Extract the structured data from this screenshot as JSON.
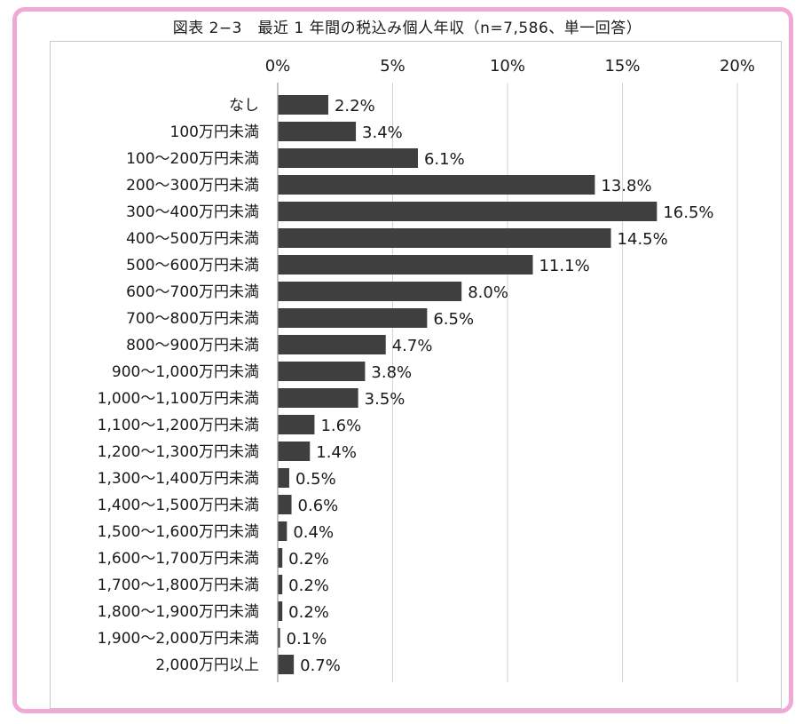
{
  "chart_data": {
    "type": "bar",
    "orientation": "horizontal",
    "title": "図表 2−3　最近 1 年間の税込み個人年収（n=7,586、単一回答）",
    "xlim": [
      0,
      20
    ],
    "xticks": [
      "0%",
      "5%",
      "10%",
      "15%",
      "20%"
    ],
    "grid": true,
    "categories": [
      "なし",
      "100万円未満",
      "100～200万円未満",
      "200～300万円未満",
      "300～400万円未満",
      "400～500万円未満",
      "500～600万円未満",
      "600～700万円未満",
      "700～800万円未満",
      "800～900万円未満",
      "900～1,000万円未満",
      "1,000～1,100万円未満",
      "1,100～1,200万円未満",
      "1,200～1,300万円未満",
      "1,300～1,400万円未満",
      "1,400～1,500万円未満",
      "1,500～1,600万円未満",
      "1,600～1,700万円未満",
      "1,700～1,800万円未満",
      "1,800～1,900万円未満",
      "1,900～2,000万円未満",
      "2,000万円以上"
    ],
    "values": [
      2.2,
      3.4,
      6.1,
      13.8,
      16.5,
      14.5,
      11.1,
      8.0,
      6.5,
      4.7,
      3.8,
      3.5,
      1.6,
      1.4,
      0.5,
      0.6,
      0.4,
      0.2,
      0.2,
      0.2,
      0.1,
      0.7
    ],
    "value_labels": [
      "2.2%",
      "3.4%",
      "6.1%",
      "13.8%",
      "16.5%",
      "14.5%",
      "11.1%",
      "8.0%",
      "6.5%",
      "4.7%",
      "3.8%",
      "3.5%",
      "1.6%",
      "1.4%",
      "0.5%",
      "0.6%",
      "0.4%",
      "0.2%",
      "0.2%",
      "0.2%",
      "0.1%",
      "0.7%"
    ],
    "bar_color": "#3f3f3f",
    "grid_color": "#d4d4d4",
    "frame_color": "#f0a8d4"
  }
}
